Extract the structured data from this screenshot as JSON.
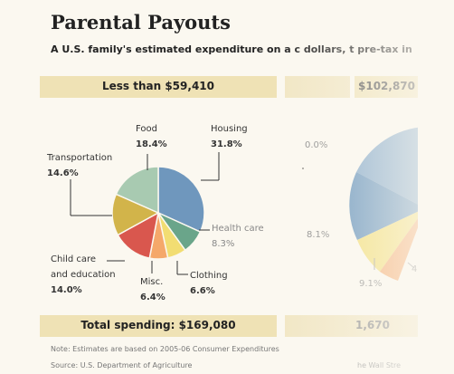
{
  "title": "Parental Payouts",
  "subtitle": "A U.S. family's estimated expenditure on a c dollars, t pre-tax in",
  "chart_data": [
    {
      "type": "pie",
      "title": "Less than $59,410",
      "slices": [
        {
          "label": "Housing",
          "value": 31.8,
          "display": "31.8%",
          "color": "#6f97bd"
        },
        {
          "label": "Health care",
          "value": 8.3,
          "display": "8.3%",
          "color": "#6aa58a"
        },
        {
          "label": "Clothing",
          "value": 6.6,
          "display": "6.6%",
          "color": "#f2dd72"
        },
        {
          "label": "Misc.",
          "value": 6.4,
          "display": "6.4%",
          "color": "#f5a86a"
        },
        {
          "label": "Child care and education",
          "value": 14.0,
          "display": "14.0%",
          "color": "#d9574e"
        },
        {
          "label": "Transportation",
          "value": 14.6,
          "display": "14.6%",
          "color": "#d2b44a"
        },
        {
          "label": "Food",
          "value": 18.4,
          "display": "18.4%",
          "color": "#a8cab1"
        }
      ],
      "total_label": "Total spending: $169,080"
    },
    {
      "type": "pie",
      "title": "$102,870",
      "partial": true,
      "visible_values": [
        "0.0%",
        "8.1%",
        "9.1%"
      ],
      "total_label": "1,670"
    }
  ],
  "labels": {
    "food": "Food",
    "food_val": "18.4%",
    "housing": "Housing",
    "housing_val": "31.8%",
    "transport": "Transportation",
    "transport_val": "14.6%",
    "health": "Health care",
    "health_val": "8.3%",
    "childcare_1": "Child care",
    "childcare_2": "and education",
    "childcare_val": "14.0%",
    "misc": "Misc.",
    "misc_val": "6.4%",
    "clothing": "Clothing",
    "clothing_val": "6.6%",
    "right_top": "0.0%",
    "right_mid": "8.1%",
    "right_bot": "9.1%",
    "right_tick": "4"
  },
  "note": "Note: Estimates are based on 2005-06 Consumer Expenditures",
  "source": "Source: U.S. Department of Agriculture",
  "source_right": "he Wall Stre"
}
